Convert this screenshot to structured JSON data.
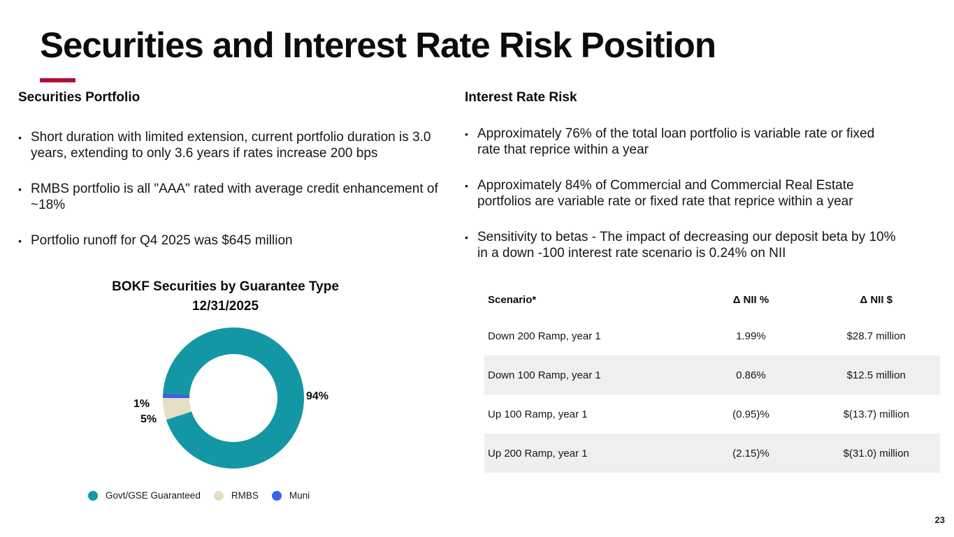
{
  "slide": {
    "title": "Securities and Interest Rate Risk Position",
    "accent_color": "#b00d33",
    "page_number": "23"
  },
  "securities_portfolio": {
    "heading": "Securities Portfolio",
    "bullets": [
      "Short duration with limited extension, current portfolio duration is 3.0 years, extending to only 3.6 years if rates increase 200 bps",
      "RMBS portfolio is all \"AAA\" rated with average credit enhancement of  ~18%",
      "Portfolio runoff for Q4 2025 was $645 million"
    ]
  },
  "interest_rate_risk": {
    "heading": "Interest Rate Risk",
    "bullets": [
      "Approximately 76% of the total loan portfolio is variable rate or fixed rate that reprice within a year",
      "Approximately 84% of Commercial and Commercial Real Estate portfolios are variable rate or fixed rate that reprice within a year",
      "Sensitivity to betas - The impact of decreasing our deposit beta by 10% in a down -100 interest rate scenario is 0.24% on NII"
    ]
  },
  "chart_data": {
    "type": "pie",
    "donut": true,
    "title": "BOKF Securities by Guarantee Type",
    "subtitle": "12/31/2025",
    "labels": [
      "Govt/GSE Guaranteed",
      "RMBS",
      "Muni"
    ],
    "values": [
      94,
      5,
      1
    ],
    "value_labels": [
      "94%",
      "5%",
      "1%"
    ],
    "colors": [
      "#1397a4",
      "#e5ddc4",
      "#3b64e4"
    ],
    "rotation_deg": 273.6,
    "legend_position": "bottom"
  },
  "table": {
    "stripe_color": "#efefef",
    "headers": [
      "Scenario*",
      "Δ NII %",
      "Δ NII $"
    ],
    "rows": [
      [
        "Down 200 Ramp, year 1",
        "1.99%",
        "$28.7 million"
      ],
      [
        "Down 100 Ramp, year 1",
        "0.86%",
        "$12.5 million"
      ],
      [
        "Up 100 Ramp, year 1",
        "(0.95)%",
        "$(13.7) million"
      ],
      [
        "Up 200 Ramp, year 1",
        "(2.15)%",
        "$(31.0) million"
      ]
    ]
  }
}
